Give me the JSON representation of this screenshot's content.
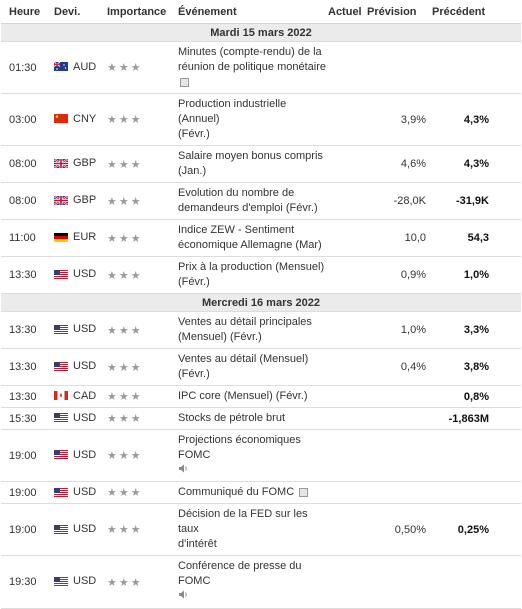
{
  "headers": {
    "time": "Heure",
    "currency": "Devi.",
    "importance": "Importance",
    "event": "Événement",
    "actual": "Actuel",
    "forecast": "Prévision",
    "previous": "Précédent"
  },
  "colors": {
    "date_row_bg": "#ebebeb",
    "star": "#9a9a9a",
    "border": "#dddddd"
  },
  "days": [
    {
      "date": "Mardi 15 mars 2022",
      "rows": [
        {
          "time": "01:30",
          "currency": "AUD",
          "flag": "au",
          "stars": "★★★",
          "event_lines": [
            "Minutes (compte-rendu) de la",
            "réunion de politique monétaire"
          ],
          "icon": "document-icon",
          "icon_newline": true,
          "actual": "",
          "forecast": "",
          "previous": "",
          "h": 45
        },
        {
          "time": "03:00",
          "currency": "CNY",
          "flag": "cn",
          "stars": "★★★",
          "event_lines": [
            "Production industrielle (Annuel)",
            "(Févr.)"
          ],
          "icon": "",
          "actual": "",
          "forecast": "3,9%",
          "previous": "4,3%",
          "h": 34
        },
        {
          "time": "08:00",
          "currency": "GBP",
          "flag": "gb",
          "stars": "★★★",
          "event_lines": [
            "Salaire moyen bonus compris",
            "(Jan.)"
          ],
          "icon": "",
          "actual": "",
          "forecast": "4,6%",
          "previous": "4,3%",
          "h": 34
        },
        {
          "time": "08:00",
          "currency": "GBP",
          "flag": "gb",
          "stars": "★★★",
          "event_lines": [
            "Evolution du nombre de",
            "demandeurs d'emploi (Févr.)"
          ],
          "icon": "",
          "actual": "",
          "forecast": "-28,0K",
          "previous": "-31,9K",
          "h": 35
        },
        {
          "time": "11:00",
          "currency": "EUR",
          "flag": "de",
          "stars": "★★★",
          "event_lines": [
            "Indice ZEW - Sentiment",
            "économique Allemagne (Mar)"
          ],
          "icon": "",
          "actual": "",
          "forecast": "10,0",
          "previous": "54,3",
          "h": 33
        },
        {
          "time": "13:30",
          "currency": "USD",
          "flag": "us",
          "stars": "★★★",
          "event_lines": [
            "Prix à la production (Mensuel)",
            "(Févr.)"
          ],
          "icon": "",
          "actual": "",
          "forecast": "0,9%",
          "previous": "1,0%",
          "h": 34
        }
      ]
    },
    {
      "date": "Mercredi 16 mars 2022",
      "rows": [
        {
          "time": "13:30",
          "currency": "USD",
          "flag": "us",
          "stars": "★★★",
          "event_lines": [
            "Ventes au détail principales",
            "(Mensuel) (Févr.)"
          ],
          "icon": "",
          "actual": "",
          "forecast": "1,0%",
          "previous": "3,3%",
          "h": 34
        },
        {
          "time": "13:30",
          "currency": "USD",
          "flag": "us",
          "stars": "★★★",
          "event_lines": [
            "Ventes au détail (Mensuel)",
            "(Févr.)"
          ],
          "icon": "",
          "actual": "",
          "forecast": "0,4%",
          "previous": "3,8%",
          "h": 34
        },
        {
          "time": "13:30",
          "currency": "CAD",
          "flag": "ca",
          "stars": "★★★",
          "event_lines": [
            "IPC core (Mensuel) (Févr.)"
          ],
          "icon": "",
          "actual": "",
          "forecast": "",
          "previous": "0,8%",
          "h": 21
        },
        {
          "time": "15:30",
          "currency": "USD",
          "flag": "us",
          "stars": "★★★",
          "event_lines": [
            "Stocks de pétrole brut"
          ],
          "icon": "",
          "actual": "",
          "forecast": "",
          "previous": "-1,863M",
          "h": 21
        },
        {
          "time": "19:00",
          "currency": "USD",
          "flag": "us",
          "stars": "★★★",
          "event_lines": [
            "Projections économiques FOMC"
          ],
          "icon": "speaker-icon",
          "icon_newline": true,
          "actual": "",
          "forecast": "",
          "previous": "",
          "h": 34
        },
        {
          "time": "19:00",
          "currency": "USD",
          "flag": "us",
          "stars": "★★★",
          "event_lines": [
            "Communiqué du FOMC"
          ],
          "icon": "document-icon",
          "icon_newline": false,
          "actual": "",
          "forecast": "",
          "previous": "",
          "h": 21
        },
        {
          "time": "19:00",
          "currency": "USD",
          "flag": "us",
          "stars": "★★★",
          "event_lines": [
            "Décision de la FED sur les taux",
            "d'intérêt"
          ],
          "icon": "",
          "actual": "",
          "forecast": "0,50%",
          "previous": "0,25%",
          "h": 34
        },
        {
          "time": "19:30",
          "currency": "USD",
          "flag": "us",
          "stars": "★★★",
          "event_lines": [
            "Conférence de presse du FOMC"
          ],
          "icon": "speaker-icon",
          "icon_newline": true,
          "actual": "",
          "forecast": "",
          "previous": "",
          "h": 34
        }
      ]
    }
  ]
}
